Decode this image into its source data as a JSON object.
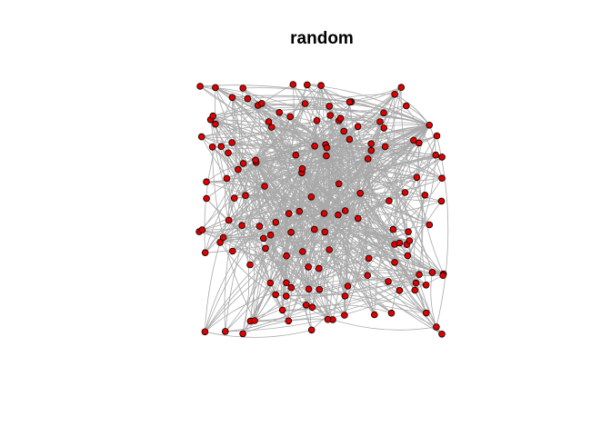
{
  "title": "random",
  "colors": {
    "node_fill": "#e00000",
    "node_stroke": "#000000",
    "edge": "#a9a9a9",
    "background": "#ffffff"
  },
  "graph": {
    "layout": "random",
    "node_count": 150,
    "edge_count": 700,
    "hub_count": 6,
    "seed": 7,
    "extent": {
      "x": [
        -1,
        1
      ],
      "y": [
        -1,
        1
      ]
    }
  }
}
